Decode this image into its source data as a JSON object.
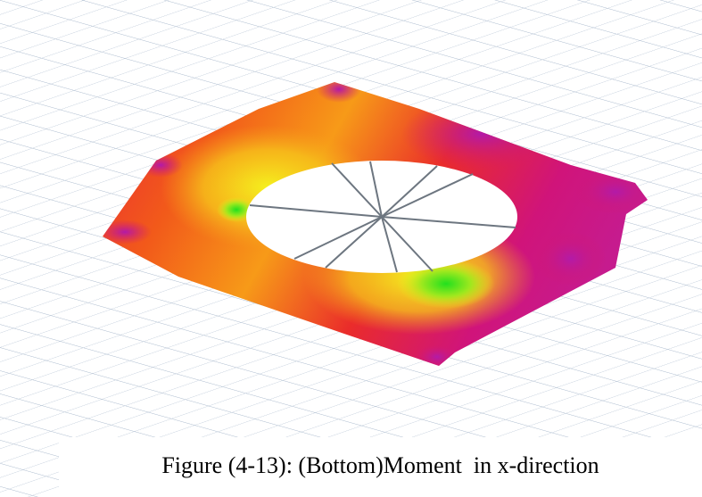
{
  "caption": "Figure (4-13): (Bottom)Moment  in x-direction"
}
